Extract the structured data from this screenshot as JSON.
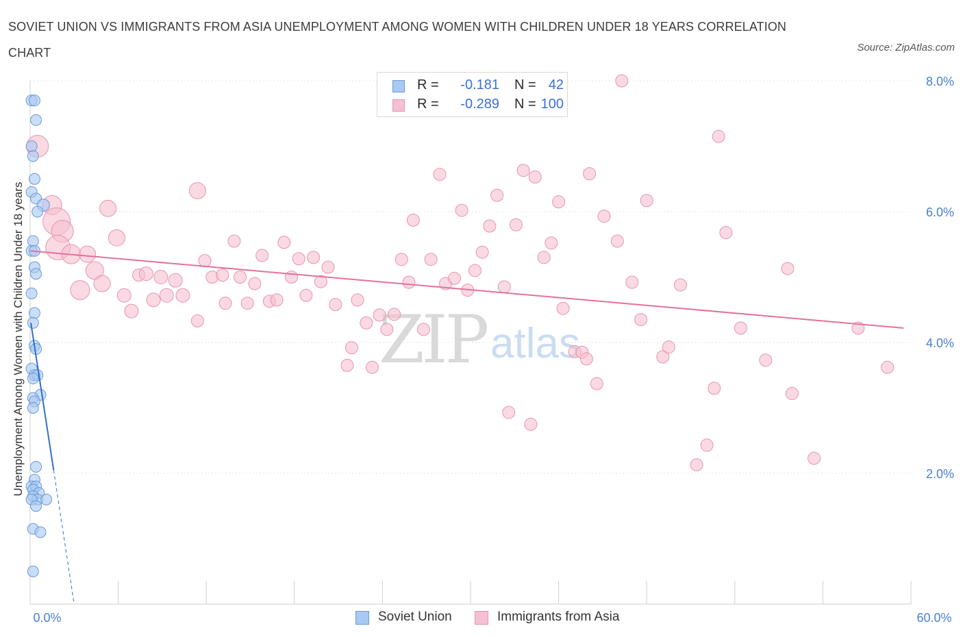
{
  "title": "SOVIET UNION VS IMMIGRANTS FROM ASIA UNEMPLOYMENT AMONG WOMEN WITH CHILDREN UNDER 18 YEARS CORRELATION CHART",
  "source": "Source: ZipAtlas.com",
  "watermark": {
    "zip": "ZIP",
    "atlas": "atlas"
  },
  "legend_top": {
    "rows": [
      {
        "r_label": "R =",
        "r_value": "-0.181",
        "n_label": "N =",
        "n_value": "42",
        "color": "#a9c8f2",
        "border": "#6a9ad8"
      },
      {
        "r_label": "R =",
        "r_value": "-0.289",
        "n_label": "N =",
        "n_value": "100",
        "color": "#f6c0d0",
        "border": "#e595ae"
      }
    ]
  },
  "legend_bottom": [
    {
      "label": "Soviet Union",
      "color": "#a9c8f2",
      "border": "#6a9ad8"
    },
    {
      "label": "Immigrants from Asia",
      "color": "#f6c0d0",
      "border": "#e595ae"
    }
  ],
  "chart_data": {
    "type": "scatter",
    "title": "SOVIET UNION VS IMMIGRANTS FROM ASIA UNEMPLOYMENT AMONG WOMEN WITH CHILDREN UNDER 18 YEARS CORRELATION CHART",
    "xlabel": "",
    "ylabel": "Unemployment Among Women with Children Under 18 years",
    "xlim": [
      0,
      60
    ],
    "ylim": [
      0,
      8.0
    ],
    "x_tick_labels": [
      "0.0%",
      "60.0%"
    ],
    "y_ticks": [
      2,
      4,
      6,
      8
    ],
    "y_tick_labels": [
      "2.0%",
      "4.0%",
      "6.0%",
      "8.0%"
    ],
    "grid": true,
    "legend_position": "top-center",
    "series": [
      {
        "name": "Soviet Union",
        "color": "#a9c8f2",
        "stroke": "#6a9ad8",
        "trend": {
          "x0": 0.05,
          "y0": 4.3,
          "x1": 1.6,
          "y1": 2.05,
          "dash_to_x": 3.0,
          "dash_to_y": 0.0,
          "color": "#2f6fd0"
        },
        "points": [
          [
            0.1,
            7.7,
            8
          ],
          [
            0.3,
            7.7,
            8
          ],
          [
            0.4,
            7.4,
            8
          ],
          [
            0.1,
            7.0,
            8
          ],
          [
            0.2,
            6.85,
            8
          ],
          [
            0.3,
            6.5,
            8
          ],
          [
            0.1,
            6.3,
            8
          ],
          [
            0.4,
            6.2,
            8
          ],
          [
            0.9,
            6.1,
            9
          ],
          [
            0.5,
            6.0,
            8
          ],
          [
            0.2,
            5.55,
            8
          ],
          [
            0.1,
            5.4,
            8
          ],
          [
            0.3,
            5.4,
            8
          ],
          [
            0.3,
            5.15,
            8
          ],
          [
            0.4,
            5.05,
            8
          ],
          [
            0.1,
            4.75,
            8
          ],
          [
            0.3,
            4.45,
            8
          ],
          [
            0.2,
            4.3,
            8
          ],
          [
            0.3,
            3.95,
            8
          ],
          [
            0.4,
            3.9,
            8
          ],
          [
            0.1,
            3.6,
            8
          ],
          [
            0.3,
            3.5,
            8
          ],
          [
            0.5,
            3.5,
            8
          ],
          [
            0.2,
            3.45,
            8
          ],
          [
            0.7,
            3.2,
            8
          ],
          [
            0.2,
            3.15,
            8
          ],
          [
            0.3,
            3.1,
            8
          ],
          [
            0.2,
            3.0,
            8
          ],
          [
            0.4,
            2.1,
            8
          ],
          [
            0.3,
            1.9,
            8
          ],
          [
            0.1,
            1.8,
            8
          ],
          [
            0.4,
            1.8,
            8
          ],
          [
            0.2,
            1.75,
            8
          ],
          [
            0.6,
            1.7,
            8
          ],
          [
            0.2,
            1.65,
            8
          ],
          [
            0.5,
            1.6,
            8
          ],
          [
            1.1,
            1.6,
            8
          ],
          [
            0.1,
            1.6,
            8
          ],
          [
            0.4,
            1.5,
            8
          ],
          [
            0.2,
            1.15,
            8
          ],
          [
            0.7,
            1.1,
            8
          ],
          [
            0.2,
            0.5,
            8
          ]
        ]
      },
      {
        "name": "Immigrants from Asia",
        "color": "#f6c0d0",
        "stroke": "#e595ae",
        "trend": {
          "x0": 0.0,
          "y0": 5.4,
          "x1": 59.5,
          "y1": 4.22,
          "color": "#e4709a"
        },
        "points": [
          [
            0.5,
            7.0,
            16
          ],
          [
            1.5,
            6.1,
            14
          ],
          [
            1.8,
            5.85,
            20
          ],
          [
            2.2,
            5.7,
            16
          ],
          [
            1.9,
            5.45,
            18
          ],
          [
            2.8,
            5.35,
            14
          ],
          [
            3.9,
            5.35,
            12
          ],
          [
            4.4,
            5.1,
            13
          ],
          [
            5.3,
            6.05,
            12
          ],
          [
            5.9,
            5.6,
            12
          ],
          [
            3.4,
            4.8,
            14
          ],
          [
            4.9,
            4.9,
            12
          ],
          [
            6.4,
            4.72,
            10
          ],
          [
            6.9,
            4.48,
            10
          ],
          [
            7.4,
            5.03,
            9
          ],
          [
            7.9,
            5.05,
            10
          ],
          [
            8.4,
            4.65,
            10
          ],
          [
            8.9,
            5.0,
            10
          ],
          [
            9.3,
            4.72,
            10
          ],
          [
            9.9,
            4.95,
            10
          ],
          [
            10.4,
            4.72,
            10
          ],
          [
            11.4,
            6.32,
            12
          ],
          [
            11.4,
            4.33,
            9
          ],
          [
            11.9,
            5.25,
            9
          ],
          [
            12.4,
            5.0,
            9
          ],
          [
            13.1,
            5.03,
            9
          ],
          [
            13.3,
            4.6,
            9
          ],
          [
            13.9,
            5.55,
            9
          ],
          [
            14.3,
            5.0,
            9
          ],
          [
            14.8,
            4.6,
            9
          ],
          [
            15.3,
            4.9,
            9
          ],
          [
            15.8,
            5.33,
            9
          ],
          [
            16.3,
            4.63,
            9
          ],
          [
            16.8,
            4.65,
            9
          ],
          [
            17.3,
            5.53,
            9
          ],
          [
            17.8,
            5.0,
            9
          ],
          [
            18.3,
            5.28,
            9
          ],
          [
            18.8,
            4.72,
            9
          ],
          [
            19.3,
            5.3,
            9
          ],
          [
            19.8,
            4.93,
            9
          ],
          [
            20.3,
            5.15,
            9
          ],
          [
            20.8,
            4.58,
            9
          ],
          [
            21.6,
            3.65,
            9
          ],
          [
            21.9,
            3.92,
            9
          ],
          [
            22.3,
            4.65,
            9
          ],
          [
            22.9,
            4.3,
            9
          ],
          [
            23.3,
            3.62,
            9
          ],
          [
            23.8,
            4.42,
            9
          ],
          [
            24.3,
            4.2,
            9
          ],
          [
            24.8,
            4.43,
            9
          ],
          [
            25.3,
            5.27,
            9
          ],
          [
            25.8,
            4.92,
            9
          ],
          [
            26.1,
            5.87,
            9
          ],
          [
            26.8,
            4.2,
            9
          ],
          [
            27.3,
            5.27,
            9
          ],
          [
            27.9,
            6.57,
            9
          ],
          [
            28.3,
            4.9,
            9
          ],
          [
            28.9,
            4.98,
            9
          ],
          [
            29.4,
            6.02,
            9
          ],
          [
            29.8,
            4.8,
            9
          ],
          [
            30.3,
            5.1,
            9
          ],
          [
            30.8,
            5.38,
            9
          ],
          [
            31.3,
            5.78,
            9
          ],
          [
            31.8,
            6.25,
            9
          ],
          [
            32.3,
            4.85,
            9
          ],
          [
            32.6,
            2.93,
            9
          ],
          [
            33.1,
            5.8,
            9
          ],
          [
            33.6,
            6.63,
            9
          ],
          [
            34.1,
            2.75,
            9
          ],
          [
            34.4,
            6.53,
            9
          ],
          [
            35.0,
            5.3,
            9
          ],
          [
            35.5,
            5.52,
            9
          ],
          [
            36.0,
            6.15,
            9
          ],
          [
            36.3,
            4.52,
            9
          ],
          [
            37.1,
            3.86,
            9
          ],
          [
            37.6,
            3.85,
            9
          ],
          [
            37.9,
            3.75,
            9
          ],
          [
            38.1,
            6.58,
            9
          ],
          [
            38.6,
            3.37,
            9
          ],
          [
            39.1,
            5.93,
            9
          ],
          [
            40.0,
            5.55,
            9
          ],
          [
            41.0,
            4.92,
            9
          ],
          [
            41.6,
            4.35,
            9
          ],
          [
            42.0,
            6.17,
            9
          ],
          [
            43.1,
            3.78,
            9
          ],
          [
            43.5,
            3.93,
            9
          ],
          [
            44.3,
            4.88,
            9
          ],
          [
            45.4,
            2.13,
            9
          ],
          [
            46.1,
            2.43,
            9
          ],
          [
            46.6,
            3.3,
            9
          ],
          [
            46.9,
            7.15,
            9
          ],
          [
            47.4,
            5.68,
            9
          ],
          [
            48.4,
            4.22,
            9
          ],
          [
            50.1,
            3.73,
            9
          ],
          [
            51.6,
            5.13,
            9
          ],
          [
            51.9,
            3.22,
            9
          ],
          [
            53.4,
            2.23,
            9
          ],
          [
            56.4,
            4.22,
            9
          ],
          [
            58.4,
            3.62,
            9
          ],
          [
            40.3,
            8.0,
            9
          ]
        ]
      }
    ]
  }
}
